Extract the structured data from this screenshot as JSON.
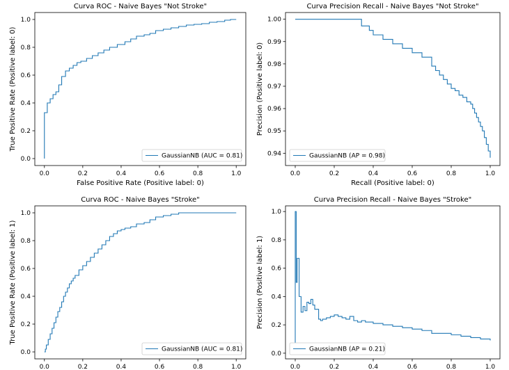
{
  "chart_data": [
    {
      "type": "line",
      "title": "Curva ROC - Naive Bayes \"Not Stroke\"",
      "xlabel": "False Positive Rate (Positive label: 0)",
      "ylabel": "True Positive Rate (Positive label: 0)",
      "xlim": [
        -0.05,
        1.05
      ],
      "ylim": [
        -0.05,
        1.05
      ],
      "xticks": [
        0.0,
        0.2,
        0.4,
        0.6,
        0.8,
        1.0
      ],
      "xtick_labels": [
        "0.0",
        "0.2",
        "0.4",
        "0.6",
        "0.8",
        "1.0"
      ],
      "yticks": [
        0.0,
        0.2,
        0.4,
        0.6,
        0.8,
        1.0
      ],
      "ytick_labels": [
        "0.0",
        "0.2",
        "0.4",
        "0.6",
        "0.8",
        "1.0"
      ],
      "grid": false,
      "legend_position": "lower-right",
      "series": [
        {
          "name": "GaussianNB (AUC = 0.81)",
          "color": "#1f77b4",
          "step": true,
          "x": [
            0.0,
            0.0,
            0.015,
            0.015,
            0.03,
            0.03,
            0.045,
            0.045,
            0.06,
            0.06,
            0.075,
            0.075,
            0.09,
            0.09,
            0.11,
            0.11,
            0.13,
            0.13,
            0.15,
            0.15,
            0.17,
            0.17,
            0.19,
            0.19,
            0.22,
            0.22,
            0.25,
            0.25,
            0.28,
            0.28,
            0.31,
            0.31,
            0.34,
            0.34,
            0.38,
            0.38,
            0.42,
            0.42,
            0.45,
            0.45,
            0.48,
            0.48,
            0.52,
            0.52,
            0.55,
            0.55,
            0.58,
            0.58,
            0.62,
            0.62,
            0.66,
            0.66,
            0.7,
            0.7,
            0.74,
            0.74,
            0.78,
            0.78,
            0.82,
            0.82,
            0.86,
            0.86,
            0.9,
            0.9,
            0.94,
            0.94,
            0.97,
            0.97,
            1.0
          ],
          "y": [
            0.0,
            0.33,
            0.33,
            0.4,
            0.4,
            0.43,
            0.43,
            0.46,
            0.46,
            0.48,
            0.48,
            0.53,
            0.53,
            0.59,
            0.59,
            0.63,
            0.63,
            0.65,
            0.65,
            0.67,
            0.67,
            0.69,
            0.69,
            0.7,
            0.7,
            0.72,
            0.72,
            0.74,
            0.74,
            0.76,
            0.76,
            0.78,
            0.78,
            0.8,
            0.8,
            0.82,
            0.82,
            0.84,
            0.84,
            0.86,
            0.86,
            0.88,
            0.88,
            0.89,
            0.89,
            0.9,
            0.9,
            0.92,
            0.92,
            0.93,
            0.93,
            0.94,
            0.94,
            0.95,
            0.95,
            0.96,
            0.96,
            0.965,
            0.965,
            0.97,
            0.97,
            0.98,
            0.98,
            0.985,
            0.985,
            0.995,
            0.995,
            1.0,
            1.0
          ]
        }
      ]
    },
    {
      "type": "line",
      "title": "Curva Precision Recall - Naive Bayes \"Not Stroke\"",
      "xlabel": "Recall (Positive label: 0)",
      "ylabel": "Precision (Positive label: 0)",
      "xlim": [
        -0.05,
        1.05
      ],
      "ylim": [
        0.9345,
        1.003
      ],
      "xticks": [
        0.0,
        0.2,
        0.4,
        0.6,
        0.8,
        1.0
      ],
      "xtick_labels": [
        "0.0",
        "0.2",
        "0.4",
        "0.6",
        "0.8",
        "1.0"
      ],
      "yticks": [
        0.94,
        0.95,
        0.96,
        0.97,
        0.98,
        0.99,
        1.0
      ],
      "ytick_labels": [
        "0.94",
        "0.95",
        "0.96",
        "0.97",
        "0.98",
        "0.99",
        "1.00"
      ],
      "grid": false,
      "legend_position": "lower-left",
      "series": [
        {
          "name": "GaussianNB (AP = 0.98)",
          "color": "#1f77b4",
          "step": true,
          "x": [
            0.0,
            0.33,
            0.34,
            0.38,
            0.4,
            0.45,
            0.5,
            0.55,
            0.6,
            0.65,
            0.7,
            0.72,
            0.74,
            0.76,
            0.78,
            0.8,
            0.82,
            0.84,
            0.86,
            0.88,
            0.9,
            0.91,
            0.92,
            0.93,
            0.94,
            0.95,
            0.96,
            0.97,
            0.98,
            0.99,
            1.0
          ],
          "y": [
            1.0,
            1.0,
            0.997,
            0.995,
            0.993,
            0.991,
            0.989,
            0.987,
            0.985,
            0.983,
            0.979,
            0.977,
            0.975,
            0.973,
            0.971,
            0.969,
            0.968,
            0.966,
            0.965,
            0.963,
            0.962,
            0.96,
            0.958,
            0.956,
            0.954,
            0.952,
            0.95,
            0.947,
            0.944,
            0.941,
            0.938
          ]
        }
      ]
    },
    {
      "type": "line",
      "title": "Curva ROC - Naive Bayes \"Stroke\"",
      "xlabel": "",
      "ylabel": "True Positive Rate (Positive label: 1)",
      "xlim": [
        -0.05,
        1.05
      ],
      "ylim": [
        -0.05,
        1.05
      ],
      "xticks": [
        0.0,
        0.2,
        0.4,
        0.6,
        0.8,
        1.0
      ],
      "xtick_labels": [
        "0.0",
        "0.2",
        "0.4",
        "0.6",
        "0.8",
        "1.0"
      ],
      "yticks": [
        0.0,
        0.2,
        0.4,
        0.6,
        0.8,
        1.0
      ],
      "ytick_labels": [
        "0.0",
        "0.2",
        "0.4",
        "0.6",
        "0.8",
        "1.0"
      ],
      "grid": false,
      "legend_position": "lower-right",
      "series": [
        {
          "name": "GaussianNB (AUC = 0.81)",
          "color": "#1f77b4",
          "step": true,
          "x": [
            0.0,
            0.005,
            0.01,
            0.02,
            0.03,
            0.04,
            0.05,
            0.06,
            0.07,
            0.08,
            0.09,
            0.1,
            0.11,
            0.12,
            0.13,
            0.14,
            0.15,
            0.16,
            0.18,
            0.2,
            0.22,
            0.24,
            0.26,
            0.28,
            0.3,
            0.32,
            0.34,
            0.36,
            0.38,
            0.4,
            0.42,
            0.45,
            0.48,
            0.52,
            0.55,
            0.58,
            0.62,
            0.66,
            0.7,
            1.0
          ],
          "y": [
            0.0,
            0.02,
            0.05,
            0.09,
            0.13,
            0.17,
            0.21,
            0.25,
            0.29,
            0.32,
            0.36,
            0.4,
            0.43,
            0.46,
            0.49,
            0.51,
            0.53,
            0.55,
            0.59,
            0.62,
            0.65,
            0.68,
            0.71,
            0.74,
            0.77,
            0.8,
            0.83,
            0.85,
            0.87,
            0.88,
            0.89,
            0.9,
            0.92,
            0.93,
            0.95,
            0.97,
            0.98,
            0.99,
            1.0,
            1.0
          ]
        }
      ]
    },
    {
      "type": "line",
      "title": "Curva Precision Recall - Naive Bayes \"Stroke\"",
      "xlabel": "",
      "ylabel": "Precision (Positive label: 1)",
      "xlim": [
        -0.05,
        1.05
      ],
      "ylim": [
        -0.04,
        1.04
      ],
      "xticks": [
        0.0,
        0.2,
        0.4,
        0.6,
        0.8,
        1.0
      ],
      "xtick_labels": [
        "0.0",
        "0.2",
        "0.4",
        "0.6",
        "0.8",
        "1.0"
      ],
      "yticks": [
        0.0,
        0.2,
        0.4,
        0.6,
        0.8,
        1.0
      ],
      "ytick_labels": [
        "0.0",
        "0.2",
        "0.4",
        "0.6",
        "0.8",
        "1.0"
      ],
      "grid": false,
      "legend_position": "lower-left",
      "series": [
        {
          "name": "GaussianNB (AP = 0.21)",
          "color": "#1f77b4",
          "step": true,
          "x": [
            0.0,
            0.0,
            0.005,
            0.01,
            0.02,
            0.03,
            0.04,
            0.05,
            0.06,
            0.07,
            0.08,
            0.09,
            0.1,
            0.12,
            0.13,
            0.14,
            0.16,
            0.18,
            0.2,
            0.22,
            0.24,
            0.26,
            0.28,
            0.3,
            0.32,
            0.34,
            0.36,
            0.4,
            0.45,
            0.5,
            0.55,
            0.6,
            0.65,
            0.7,
            0.75,
            0.8,
            0.85,
            0.9,
            0.95,
            1.0
          ],
          "y": [
            0.05,
            1.0,
            0.5,
            0.67,
            0.4,
            0.29,
            0.33,
            0.3,
            0.36,
            0.35,
            0.38,
            0.34,
            0.31,
            0.24,
            0.23,
            0.24,
            0.25,
            0.26,
            0.27,
            0.26,
            0.25,
            0.24,
            0.26,
            0.23,
            0.22,
            0.23,
            0.22,
            0.21,
            0.2,
            0.19,
            0.18,
            0.17,
            0.16,
            0.14,
            0.14,
            0.13,
            0.12,
            0.11,
            0.1,
            0.09
          ]
        }
      ]
    }
  ]
}
